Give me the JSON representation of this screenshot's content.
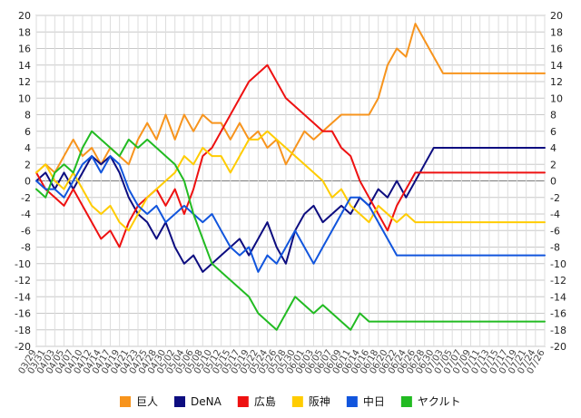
{
  "chart_data": {
    "type": "line",
    "title": "",
    "xlabel": "",
    "ylabel": "",
    "ylim": [
      -20,
      20
    ],
    "y_ticks": [
      20,
      18,
      16,
      14,
      12,
      10,
      8,
      6,
      4,
      2,
      0,
      -2,
      -4,
      -6,
      -8,
      -10,
      -12,
      -14,
      -16,
      -18,
      -20
    ],
    "x_labels": [
      "03/29",
      "03/31",
      "04/03",
      "04/05",
      "04/07",
      "04/10",
      "04/12",
      "04/14",
      "04/17",
      "04/19",
      "04/21",
      "04/23",
      "04/25",
      "04/28",
      "04/30",
      "05/02",
      "05/04",
      "05/06",
      "05/08",
      "05/10",
      "05/12",
      "05/15",
      "05/17",
      "05/19",
      "05/22",
      "05/24",
      "05/26",
      "05/28",
      "05/30",
      "06/01",
      "06/03",
      "06/05",
      "06/07",
      "06/09",
      "06/11",
      "06/14",
      "06/16",
      "06/18",
      "06/20",
      "06/22",
      "06/24",
      "06/26",
      "06/28",
      "06/30",
      "07/03",
      "07/05",
      "07/07",
      "07/09",
      "07/11",
      "07/13",
      "07/15",
      "07/17",
      "07/19",
      "07/21",
      "07/24",
      "07/26"
    ],
    "grid": true,
    "legend_position": "bottom",
    "series": [
      {
        "name": "巨人",
        "color": "#f7941d",
        "values": [
          1,
          2,
          1,
          3,
          5,
          3,
          4,
          2,
          4,
          3,
          2,
          5,
          7,
          5,
          8,
          5,
          8,
          6,
          8,
          7,
          7,
          5,
          7,
          5,
          6,
          4,
          5,
          2,
          4,
          6,
          5,
          6,
          7,
          8,
          8,
          8,
          8,
          10,
          14,
          16,
          15,
          19,
          17,
          15,
          13,
          13,
          13,
          13,
          13,
          13,
          13,
          13,
          13,
          13,
          13,
          13
        ]
      },
      {
        "name": "DeNA",
        "color": "#0d0d80",
        "values": [
          0,
          1,
          -1,
          1,
          -1,
          1,
          3,
          2,
          3,
          1,
          -2,
          -4,
          -5,
          -7,
          -5,
          -8,
          -10,
          -9,
          -11,
          -10,
          -9,
          -8,
          -7,
          -9,
          -7,
          -5,
          -8,
          -10,
          -6,
          -4,
          -3,
          -5,
          -4,
          -3,
          -4,
          -2,
          -3,
          -1,
          -2,
          0,
          -2,
          0,
          2,
          4,
          4,
          4,
          4,
          4,
          4,
          4,
          4,
          4,
          4,
          4,
          4,
          4
        ]
      },
      {
        "name": "広島",
        "color": "#ee1111",
        "values": [
          1,
          -1,
          -2,
          -3,
          -1,
          -3,
          -5,
          -7,
          -6,
          -8,
          -5,
          -3,
          -2,
          -1,
          -3,
          -1,
          -4,
          -1,
          3,
          4,
          6,
          8,
          10,
          12,
          13,
          14,
          12,
          10,
          9,
          8,
          7,
          6,
          6,
          4,
          3,
          0,
          -2,
          -4,
          -6,
          -3,
          -1,
          1,
          1,
          1,
          1,
          1,
          1,
          1,
          1,
          1,
          1,
          1,
          1,
          1,
          1,
          1
        ]
      },
      {
        "name": "阪神",
        "color": "#ffcc00",
        "values": [
          1,
          2,
          0,
          -1,
          1,
          -1,
          -3,
          -4,
          -3,
          -5,
          -6,
          -4,
          -2,
          -1,
          0,
          1,
          3,
          2,
          4,
          3,
          3,
          1,
          3,
          5,
          5,
          6,
          5,
          4,
          3,
          2,
          1,
          0,
          -2,
          -1,
          -3,
          -4,
          -5,
          -3,
          -4,
          -5,
          -4,
          -5,
          -5,
          -5,
          -5,
          -5,
          -5,
          -5,
          -5,
          -5,
          -5,
          -5,
          -5,
          -5,
          -5,
          -5
        ]
      },
      {
        "name": "中日",
        "color": "#1155dd",
        "values": [
          0,
          -1,
          -1,
          -2,
          0,
          2,
          3,
          1,
          3,
          2,
          -1,
          -3,
          -4,
          -3,
          -5,
          -4,
          -3,
          -4,
          -5,
          -4,
          -6,
          -8,
          -9,
          -8,
          -11,
          -9,
          -10,
          -8,
          -6,
          -8,
          -10,
          -8,
          -6,
          -4,
          -2,
          -2,
          -3,
          -5,
          -7,
          -9,
          -9,
          -9,
          -9,
          -9,
          -9,
          -9,
          -9,
          -9,
          -9,
          -9,
          -9,
          -9,
          -9,
          -9,
          -9,
          -9
        ]
      },
      {
        "name": "ヤクルト",
        "color": "#22bb22",
        "values": [
          -1,
          -2,
          1,
          2,
          1,
          4,
          6,
          5,
          4,
          3,
          5,
          4,
          5,
          4,
          3,
          2,
          0,
          -4,
          -7,
          -10,
          -11,
          -12,
          -13,
          -14,
          -16,
          -17,
          -18,
          -16,
          -14,
          -15,
          -16,
          -15,
          -16,
          -17,
          -18,
          -16,
          -17,
          -17,
          -17,
          -17,
          -17,
          -17,
          -17,
          -17,
          -17,
          -17,
          -17,
          -17,
          -17,
          -17,
          -17,
          -17,
          -17,
          -17,
          -17,
          -17
        ]
      }
    ]
  }
}
